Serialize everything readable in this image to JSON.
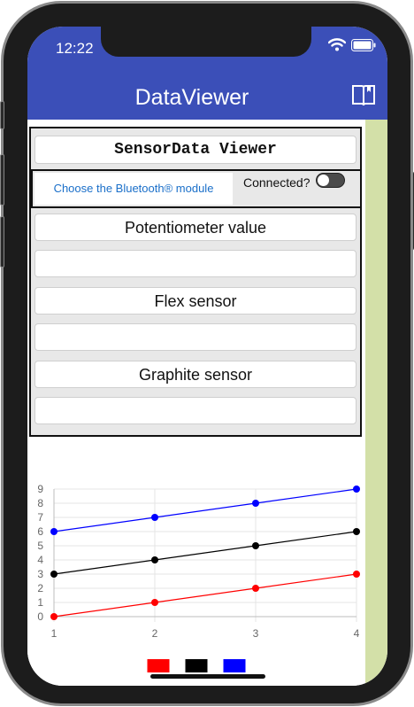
{
  "status": {
    "time": "12:22"
  },
  "app": {
    "title": "DataViewer"
  },
  "panel": {
    "title": "SensorData Viewer",
    "bt_button": "Choose the Bluetooth® module",
    "connected_label": "Connected?",
    "connected": false,
    "fields": [
      {
        "label": "Potentiometer value",
        "value": ""
      },
      {
        "label": "Flex sensor",
        "value": ""
      },
      {
        "label": "Graphite sensor",
        "value": ""
      }
    ]
  },
  "colors": {
    "accent": "#3b4fb8",
    "sidebar": "#d3e0a8",
    "link": "#1a6fc9"
  },
  "chart_data": {
    "type": "line",
    "x": [
      1,
      2,
      3,
      4
    ],
    "series": [
      {
        "color": "#ff0000",
        "values": [
          0,
          1,
          2,
          3
        ]
      },
      {
        "color": "#000000",
        "values": [
          3,
          4,
          5,
          6
        ]
      },
      {
        "color": "#0000ff",
        "values": [
          6,
          7,
          8,
          9
        ]
      }
    ],
    "xlim": [
      1,
      4
    ],
    "ylim": [
      0,
      9
    ],
    "xticks": [
      "1",
      "2",
      "3",
      "4"
    ],
    "yticks": [
      "0",
      "1",
      "2",
      "3",
      "4",
      "5",
      "6",
      "7",
      "8",
      "9"
    ],
    "grid": true,
    "legend": "bottom"
  }
}
